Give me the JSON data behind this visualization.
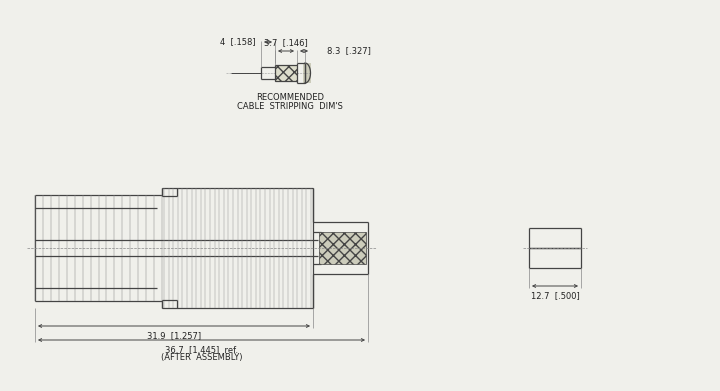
{
  "bg_color": "#f0f0eb",
  "line_color": "#444444",
  "line_width": 0.9,
  "thin_line": 0.5,
  "text_color": "#222222",
  "font_size": 6.0,
  "font_size_small": 5.5,
  "cable_label_line1": "RECOMMENDED",
  "cable_label_line2": "CABLE  STRIPPING  DIM'S",
  "dim_4": "4  [.158]",
  "dim_37": "3.7  [.146]",
  "dim_83": "8.3  [.327]",
  "dim_319": "31.9  [1.257]",
  "dim_367": "36.7  [1.445]  ref.",
  "dim_after": "(AFTER  ASSEMBLY)",
  "dim_127": "12.7  [.500]"
}
